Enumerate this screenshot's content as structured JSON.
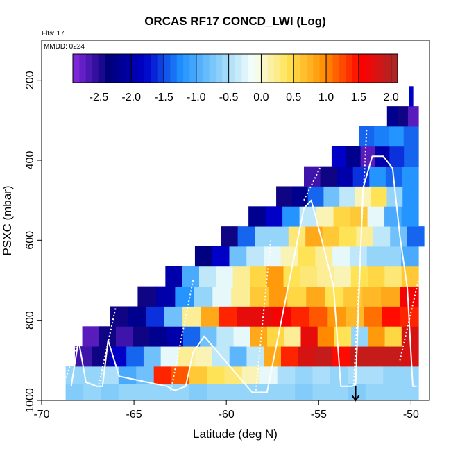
{
  "chart_data": {
    "type": "heatmap",
    "title": "ORCAS RF17 CONCD_LWI (Log)",
    "flights_note": "Flts: 17",
    "date_note": "MMDD: 0224",
    "xlabel": "Latitude (deg N)",
    "ylabel": "PSXC (mbar)",
    "xlim": [
      -70,
      -49
    ],
    "ylim": [
      1000,
      100
    ],
    "x_ticks": [
      -70,
      -65,
      -60,
      -55,
      -50
    ],
    "y_ticks": [
      200,
      400,
      600,
      800,
      1000
    ],
    "colorbar": {
      "range": [
        -2.9,
        2.1
      ],
      "ticks": [
        -2.5,
        -2.0,
        -1.5,
        -1.0,
        -0.5,
        0.0,
        0.5,
        1.0,
        1.5,
        2.0
      ],
      "tick_labels": [
        "-2.5",
        "-2.0",
        "-1.5",
        "-1.0",
        "-0.5",
        "0.0",
        "0.5",
        "1.0",
        "1.5",
        "2.0"
      ],
      "colors": [
        "#8A2BE2",
        "#00007A",
        "#0000C8",
        "#1E90FF",
        "#87CEFA",
        "#F5FFFA",
        "#FFE14D",
        "#FF8C00",
        "#FF0000",
        "#A52A2A"
      ]
    },
    "rows": [
      {
        "p_low": 915,
        "p_high": 960,
        "lat_min": -68.7,
        "lat_max": -49.6,
        "values": [
          -0.6,
          -0.6,
          -0.5,
          -1.0,
          -0.8,
          1.4,
          1.2,
          0.6,
          0.4,
          0.3,
          0.1,
          -0.2,
          -0.5,
          -0.6,
          -0.5,
          -0.6,
          -0.5,
          -0.5,
          -0.6,
          -0.6
        ]
      },
      {
        "p_low": 960,
        "p_high": 1000,
        "lat_min": -68.7,
        "lat_max": -49.6,
        "values": [
          -0.7,
          -0.6,
          -0.7,
          -0.6,
          -0.6,
          -0.6,
          -0.6,
          -0.7,
          -0.6,
          -0.6,
          -0.6,
          -0.6,
          -0.6,
          -0.7,
          -0.6,
          -0.6,
          -0.7,
          -0.6,
          -0.6,
          -0.6
        ]
      },
      {
        "p_low": 865,
        "p_high": 915,
        "lat_min": -68.2,
        "lat_max": -49.6,
        "values": [
          -2.6,
          -2.4,
          -1.8,
          -1.4,
          -0.8,
          -0.2,
          0.2,
          0.1,
          -0.4,
          -0.9,
          -0.4,
          0.8,
          1.4,
          1.8,
          1.9,
          1.5,
          1.9,
          1.9,
          1.9,
          1.8
        ]
      },
      {
        "p_low": 815,
        "p_high": 865,
        "lat_min": -67.8,
        "lat_max": -49.6,
        "values": [
          -2.7,
          -2.4,
          -2.6,
          -2.4,
          -2.2,
          -2.0,
          -1.4,
          -0.8,
          -0.4,
          -0.2,
          0.8,
          0.5,
          0.2,
          1.7,
          1.0,
          0.4,
          -0.6,
          0.9,
          0.5,
          1.8
        ]
      },
      {
        "p_low": 765,
        "p_high": 815,
        "lat_min": -66.3,
        "lat_max": -49.6,
        "values": [
          -2.4,
          -2.2,
          -1.6,
          -0.8,
          0.2,
          0.8,
          1.4,
          1.7,
          1.7,
          1.6,
          1.4,
          1.2,
          0.9,
          0.7,
          1.1,
          1.5,
          1.4
        ]
      },
      {
        "p_low": 715,
        "p_high": 765,
        "lat_min": -64.8,
        "lat_max": -49.6,
        "values": [
          -2.4,
          -2.0,
          -1.2,
          -0.6,
          -0.2,
          0.2,
          0.6,
          0.9,
          0.5,
          0.8,
          0.4,
          0.6,
          0.7,
          0.8,
          1.6
        ]
      },
      {
        "p_low": 665,
        "p_high": 715,
        "lat_min": -63.3,
        "lat_max": -49.6,
        "values": [
          -2.0,
          -1.0,
          -0.4,
          -0.2,
          0.2,
          0.5,
          0.9,
          0.4,
          0.3,
          0.2,
          0.1,
          0.4,
          0.5,
          0.3,
          0.6
        ]
      },
      {
        "p_low": 615,
        "p_high": 665,
        "lat_min": -61.7,
        "lat_max": -49.6,
        "values": [
          -2.3,
          -1.8,
          -0.8,
          -0.4,
          -0.2,
          0.1,
          0.4,
          0.2,
          -0.2,
          -0.4,
          -0.6,
          -0.6,
          -1.0
        ]
      },
      {
        "p_low": 565,
        "p_high": 615,
        "lat_min": -60.3,
        "lat_max": -49.3,
        "values": [
          -2.4,
          -1.4,
          -0.6,
          -0.6,
          0.3,
          0.8,
          0.6,
          0.4,
          0.2,
          -0.4,
          -0.8,
          -1.4
        ]
      },
      {
        "p_low": 515,
        "p_high": 565,
        "lat_min": -58.8,
        "lat_max": -49.6,
        "values": [
          -2.2,
          -1.8,
          -1.2,
          -0.4,
          0.1,
          0.5,
          0.6,
          -0.2,
          -1.0,
          -1.2
        ]
      },
      {
        "p_low": 465,
        "p_high": 515,
        "lat_min": -57.3,
        "lat_max": -49.6,
        "values": [
          -2.4,
          -2.2,
          -1.4,
          -0.8,
          -0.4,
          0.1,
          0.4,
          -0.6,
          -1.2
        ]
      },
      {
        "p_low": 415,
        "p_high": 465,
        "lat_min": -55.8,
        "lat_max": -49.6,
        "values": [
          -2.6,
          -2.4,
          -2.0,
          -1.6,
          -1.2,
          -1.4,
          -1.2
        ]
      },
      {
        "p_low": 365,
        "p_high": 415,
        "lat_min": -54.3,
        "lat_max": -49.6,
        "values": [
          -1.8,
          -2.2,
          -2.7,
          -2.0,
          -1.6,
          -1.4
        ]
      },
      {
        "p_low": 315,
        "p_high": 365,
        "lat_min": -52.8,
        "lat_max": -49.6,
        "values": [
          -1.4,
          -1.3,
          -1.2,
          -1.4
        ]
      },
      {
        "p_low": 265,
        "p_high": 315,
        "lat_min": -51.3,
        "lat_max": -49.6,
        "values": [
          -2.2,
          -2.4,
          -2.7
        ]
      },
      {
        "p_low": 215,
        "p_high": 265,
        "lat_min": -50.1,
        "lat_max": -49.9,
        "values": [
          -1.8
        ]
      }
    ],
    "flight_track": {
      "latitude": [
        -68.4,
        -68.0,
        -67.6,
        -67.0,
        -66.7,
        -66.4,
        -65.8,
        -63.2,
        -62.8,
        -62.2,
        -61.8,
        -61.2,
        -58.6,
        -58.2,
        -57.8,
        -55.8,
        -55.4,
        -54.8,
        -54.2,
        -53.8,
        -53.5,
        -53.2,
        -53.0,
        -52.6,
        -52.1,
        -51.5,
        -51.0,
        -50.6,
        -50.2,
        -49.9,
        -49.7
      ],
      "pressure": [
        965,
        850,
        955,
        965,
        965,
        850,
        940,
        965,
        975,
        965,
        880,
        840,
        980,
        980,
        980,
        520,
        500,
        605,
        715,
        965,
        965,
        965,
        960,
        470,
        390,
        390,
        420,
        590,
        720,
        965,
        965
      ]
    },
    "dotted_track_segments": [
      {
        "latitude": [
          -68.8,
          -67.8
        ],
        "pressure": [
          960,
          820
        ]
      },
      {
        "latitude": [
          -66.9,
          -66.0
        ],
        "pressure": [
          960,
          770
        ]
      },
      {
        "latitude": [
          -63.0,
          -61.8
        ],
        "pressure": [
          975,
          700
        ]
      },
      {
        "latitude": [
          -58.4,
          -57.6
        ],
        "pressure": [
          975,
          600
        ]
      },
      {
        "latitude": [
          -55.8,
          -54.4
        ],
        "pressure": [
          500,
          370
        ]
      },
      {
        "latitude": [
          -53.1,
          -52.4
        ],
        "pressure": [
          960,
          320
        ]
      },
      {
        "latitude": [
          -50.6,
          -49.6
        ],
        "pressure": [
          900,
          700
        ]
      }
    ],
    "marker_arrow": {
      "latitude": -53.0,
      "pressure": 1000
    }
  }
}
